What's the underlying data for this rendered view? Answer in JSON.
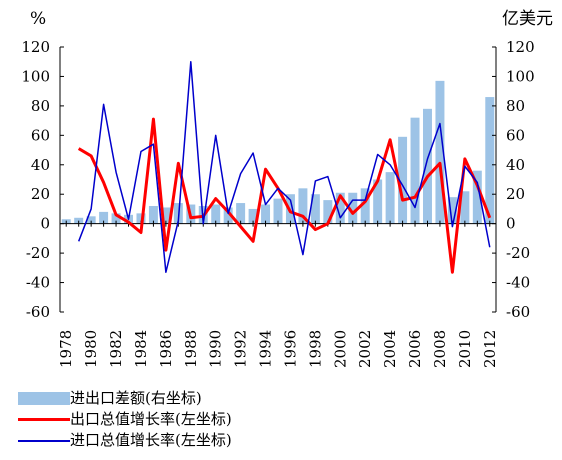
{
  "chart_data": {
    "type": "bar+line",
    "left_axis_unit": "%",
    "right_axis_unit": "亿美元",
    "ylim_left": [
      -60,
      120
    ],
    "ylim_right": [
      -60,
      120
    ],
    "y_ticks": [
      -60,
      -40,
      -20,
      0,
      20,
      40,
      60,
      80,
      100,
      120
    ],
    "x": [
      1978,
      1979,
      1980,
      1981,
      1982,
      1983,
      1984,
      1985,
      1986,
      1987,
      1988,
      1989,
      1990,
      1991,
      1992,
      1993,
      1994,
      1995,
      1996,
      1997,
      1998,
      1999,
      2000,
      2001,
      2002,
      2003,
      2004,
      2005,
      2006,
      2007,
      2008,
      2009,
      2010,
      2011,
      2012
    ],
    "x_tick_labels": [
      "1978",
      "1980",
      "1982",
      "1984",
      "1986",
      "1988",
      "1990",
      "1992",
      "1994",
      "1996",
      "1998",
      "2000",
      "2002",
      "2004",
      "2006",
      "2008",
      "2010",
      "2012"
    ],
    "series": [
      {
        "name": "进出口差额(右坐标)",
        "type": "bar",
        "axis": "right",
        "color": "#9dc3e6",
        "values": [
          3,
          4,
          5,
          8,
          7,
          6,
          7,
          12,
          11,
          14,
          13,
          12,
          13,
          11,
          14,
          10,
          13,
          17,
          20,
          24,
          20,
          16,
          21,
          21,
          24,
          30,
          35,
          59,
          72,
          78,
          97,
          18,
          22,
          36,
          86
        ]
      },
      {
        "name": "出口总值增长率(左坐标)",
        "type": "line",
        "axis": "left",
        "color": "#ff0000",
        "values": [
          null,
          51,
          46,
          28,
          6,
          1,
          -6,
          71,
          -18,
          41,
          4,
          5,
          17,
          8,
          -2,
          -12,
          37,
          24,
          8,
          5,
          -4,
          0,
          19,
          7,
          15,
          29,
          57,
          16,
          18,
          32,
          41,
          -33,
          44,
          26,
          4
        ]
      },
      {
        "name": "进口总值增长率(左坐标)",
        "type": "line",
        "axis": "left",
        "color": "#0000cc",
        "values": [
          null,
          -12,
          10,
          81,
          35,
          3,
          49,
          54,
          -33,
          2,
          110,
          0,
          60,
          7,
          34,
          48,
          13,
          24,
          16,
          -21,
          29,
          32,
          4,
          16,
          16,
          47,
          40,
          26,
          11,
          44,
          68,
          -2,
          39,
          28,
          -16
        ]
      }
    ]
  }
}
